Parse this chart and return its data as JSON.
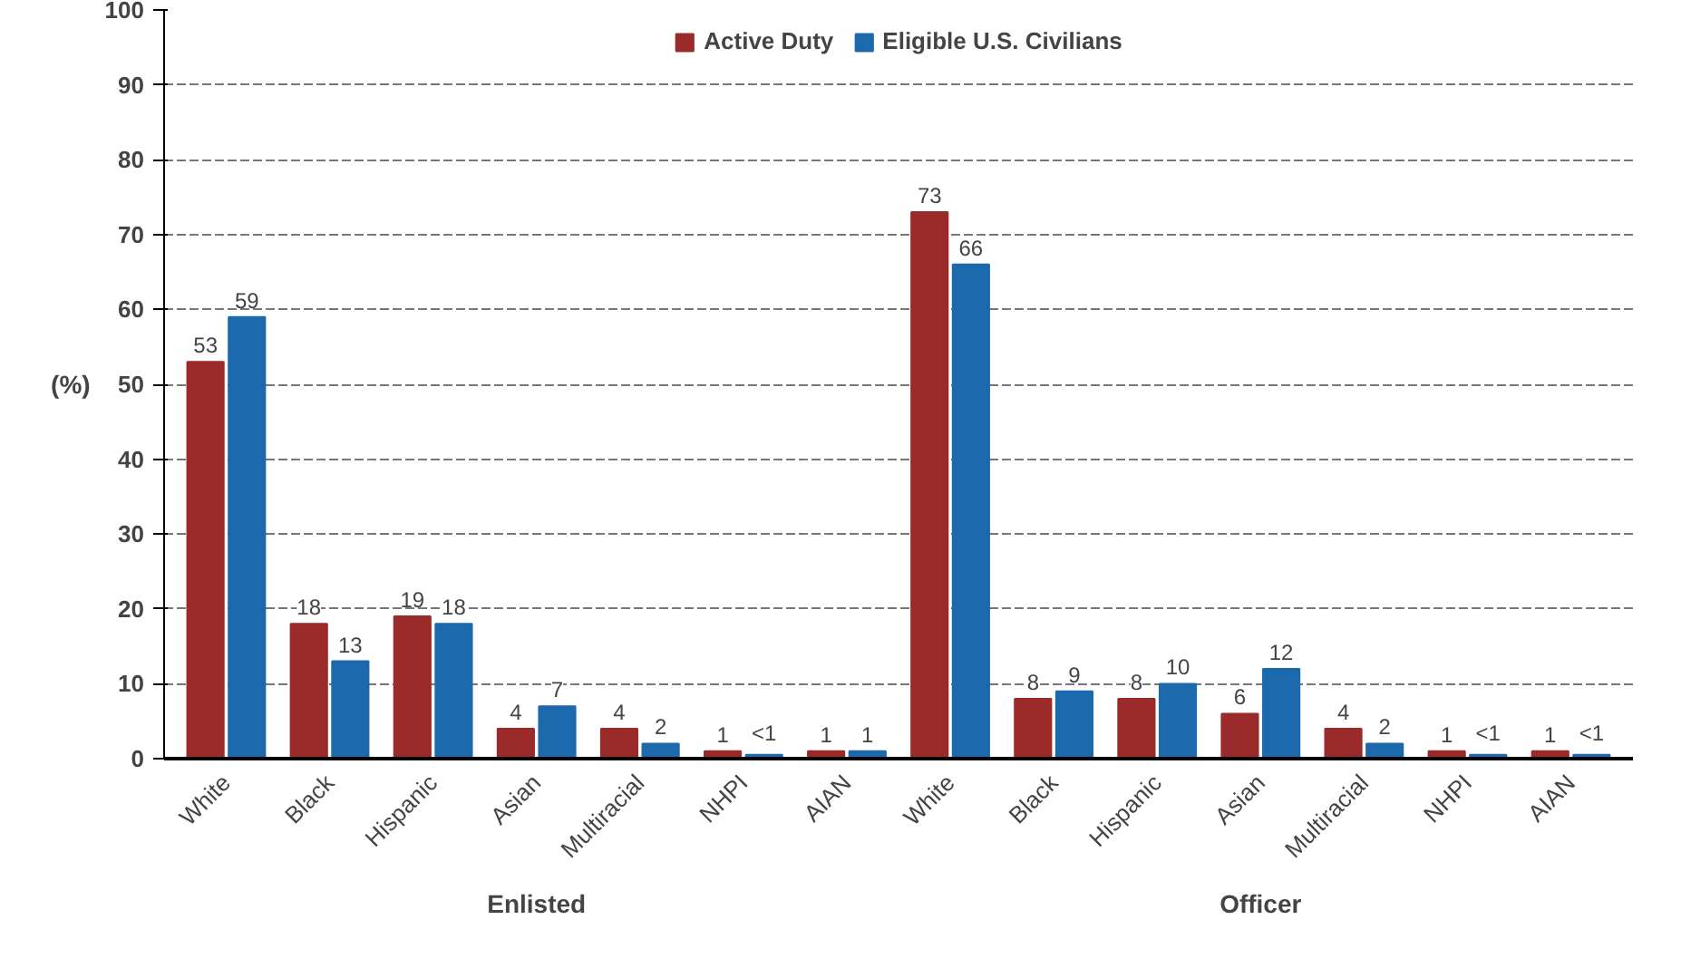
{
  "chart_data": {
    "type": "bar",
    "ylabel": "(%)",
    "categories": [
      "White",
      "Black",
      "Hispanic",
      "Asian",
      "Multiracial",
      "NHPI",
      "AIAN",
      "White",
      "Black",
      "Hispanic",
      "Asian",
      "Multiracial",
      "NHPI",
      "AIAN"
    ],
    "series": [
      {
        "name": "Active Duty",
        "color": "#9b2a2a",
        "values": [
          53,
          18,
          19,
          4,
          4,
          1,
          1,
          73,
          8,
          8,
          6,
          4,
          1,
          1
        ],
        "value_labels": [
          "53",
          "18",
          "19",
          "4",
          "4",
          "1",
          "1",
          "73",
          "8",
          "8",
          "6",
          "4",
          "1",
          "1"
        ]
      },
      {
        "name": "Eligible U.S. Civilians",
        "color": "#1c69ad",
        "values": [
          59,
          13,
          18,
          7,
          2,
          0.5,
          1,
          66,
          9,
          10,
          12,
          2,
          0.5,
          0.5
        ],
        "value_labels": [
          "59",
          "13",
          "18",
          "7",
          "2",
          "<1",
          "1",
          "66",
          "9",
          "10",
          "12",
          "2",
          "<1",
          "<1"
        ]
      }
    ],
    "ylim": [
      0,
      100
    ],
    "yticks": [
      0,
      10,
      20,
      30,
      40,
      50,
      60,
      70,
      80,
      90,
      100
    ],
    "grid": "y",
    "legend": "top",
    "annotations": [
      "Enlisted",
      "Officer"
    ]
  }
}
